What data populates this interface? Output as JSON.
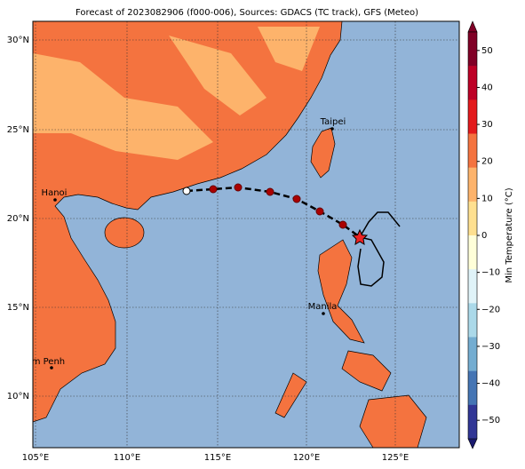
{
  "title": "Forecast of 2023082906 (f000-006), Sources: GDACS (TC track), GFS (Meteo)",
  "lat_labels": [
    "30°N",
    "25°N",
    "20°N",
    "15°N",
    "10°N"
  ],
  "lon_labels": [
    "105°E",
    "110°E",
    "115°E",
    "120°E",
    "125°E"
  ],
  "cities": [
    "Taipei",
    "Hanoi",
    "Manila",
    "Phnom Penh"
  ],
  "colorbar": {
    "label": "Min Temperature (°C)",
    "ticks": [
      50,
      40,
      30,
      20,
      10,
      0,
      {
        "value": -10,
        "label": "−10"
      },
      {
        "value": -20,
        "label": "−20"
      },
      {
        "value": -30,
        "label": "−30"
      },
      {
        "value": -40,
        "label": "−40"
      },
      {
        "value": -50,
        "label": "−50"
      }
    ]
  }
}
